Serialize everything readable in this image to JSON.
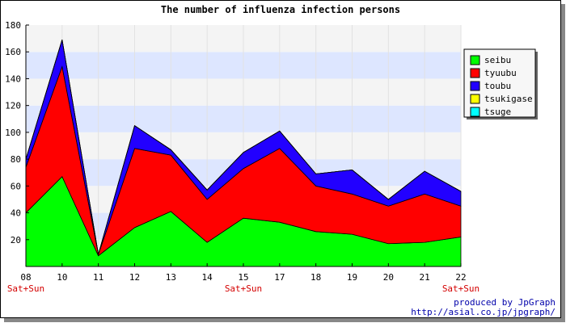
{
  "chart_data": {
    "type": "area",
    "stacked": true,
    "title": "The number of influenza infection persons",
    "xlabel": "",
    "ylabel": "",
    "ylim": [
      0,
      180
    ],
    "yticks": [
      20,
      40,
      60,
      80,
      100,
      120,
      140,
      160,
      180
    ],
    "categories": [
      "08",
      "10",
      "11",
      "12",
      "13",
      "14",
      "15",
      "17",
      "18",
      "19",
      "20",
      "21",
      "22"
    ],
    "weekend_labels": [
      {
        "category": "08",
        "text": "Sat+Sun"
      },
      {
        "category": "15",
        "text": "Sat+Sun"
      },
      {
        "category": "22",
        "text": "Sat+Sun"
      }
    ],
    "series": [
      {
        "name": "seibu",
        "color": "#00ff00",
        "values": [
          40,
          67,
          8,
          29,
          41,
          18,
          36,
          33,
          26,
          24,
          17,
          18,
          22
        ]
      },
      {
        "name": "tyuubu",
        "color": "#ff0000",
        "values": [
          34,
          82,
          1,
          59,
          42,
          32,
          37,
          55,
          34,
          30,
          28,
          36,
          23
        ]
      },
      {
        "name": "toubu",
        "color": "#2200ff",
        "values": [
          6,
          20,
          0,
          17,
          4,
          7,
          12,
          13,
          9,
          18,
          5,
          17,
          11
        ]
      },
      {
        "name": "tsukigase",
        "color": "#ffff00",
        "values": [
          0,
          0,
          0,
          0,
          0,
          0,
          0,
          0,
          0,
          0,
          0,
          0,
          0
        ]
      },
      {
        "name": "tsuge",
        "color": "#00ffff",
        "values": [
          0,
          0,
          0,
          0,
          0,
          0,
          0,
          0,
          0,
          0,
          0,
          0,
          0
        ]
      }
    ],
    "grid": true,
    "legend_position": "right"
  },
  "credits": {
    "line1": "produced by JpGraph",
    "line2": "http://asial.co.jp/jpgraph/"
  }
}
